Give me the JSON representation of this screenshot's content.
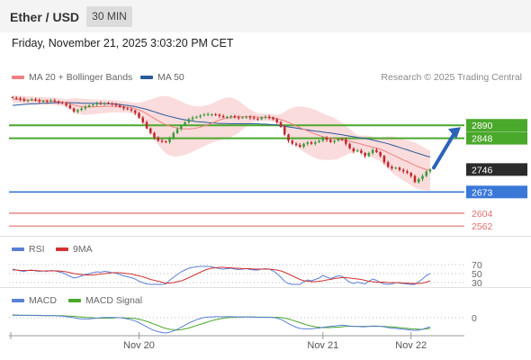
{
  "header": {
    "title": "Ether / USD",
    "interval": "30 MIN"
  },
  "datetime": "Friday, November 21, 2025 3:03:20 PM CET",
  "legend": {
    "ma20": "MA 20 + Bollinger Bands",
    "ma50": "MA 50",
    "copyright": "Research © 2025 Trading Central",
    "rsi": "RSI",
    "rsi_ma": "9MA",
    "macd": "MACD",
    "macd_signal": "MACD Signal"
  },
  "colors": {
    "candle_up": "#3d9a3d",
    "candle_down": "#c0282d",
    "ma20": "#f08080",
    "ma50": "#2a5a9a",
    "band_fill": "#f9d6d6",
    "resistance": "#4aa82b",
    "current": "#2b2b2b",
    "pivot": "#3a78d8",
    "support": "#e07070",
    "arrow": "#2a63b8",
    "rsi": "#5b7fd6",
    "rsi_ma": "#d23232",
    "macd": "#5b7fd6",
    "macd_signal": "#4aa82b"
  },
  "chart_data": {
    "type": "candlestick",
    "price_axis_labels": [
      {
        "value": 2890,
        "label": "2890",
        "kind": "resistance"
      },
      {
        "value": 2848,
        "label": "2848",
        "kind": "resistance"
      },
      {
        "value": 2746,
        "label": "2746",
        "kind": "last"
      },
      {
        "value": 2673,
        "label": "2673",
        "kind": "pivot"
      },
      {
        "value": 2604,
        "label": "2604",
        "kind": "support"
      },
      {
        "value": 2562,
        "label": "2562",
        "kind": "support"
      }
    ],
    "close": [
      2980,
      2978,
      2975,
      2970,
      2972,
      2975,
      2972,
      2968,
      2970,
      2968,
      2971,
      2968,
      2965,
      2962,
      2955,
      2945,
      2935,
      2940,
      2945,
      2950,
      2955,
      2958,
      2962,
      2960,
      2963,
      2961,
      2958,
      2956,
      2950,
      2945,
      2942,
      2938,
      2930,
      2915,
      2900,
      2880,
      2865,
      2850,
      2840,
      2838,
      2835,
      2850,
      2865,
      2878,
      2890,
      2900,
      2910,
      2915,
      2918,
      2922,
      2925,
      2926,
      2926,
      2924,
      2920,
      2916,
      2918,
      2920,
      2916,
      2914,
      2916,
      2918,
      2915,
      2912,
      2910,
      2915,
      2918,
      2916,
      2910,
      2900,
      2885,
      2860,
      2840,
      2830,
      2826,
      2820,
      2830,
      2835,
      2830,
      2835,
      2840,
      2850,
      2843,
      2836,
      2840,
      2845,
      2844,
      2830,
      2815,
      2805,
      2808,
      2800,
      2790,
      2800,
      2810,
      2803,
      2790,
      2770,
      2755,
      2750,
      2752,
      2745,
      2740,
      2735,
      2725,
      2705,
      2715,
      2725,
      2740,
      2746
    ],
    "ma20": [
      2975,
      2975,
      2974,
      2973,
      2972,
      2972,
      2971,
      2970,
      2970,
      2969,
      2969,
      2968,
      2967,
      2965,
      2963,
      2960,
      2956,
      2953,
      2951,
      2950,
      2950,
      2950,
      2951,
      2951,
      2952,
      2952,
      2952,
      2952,
      2951,
      2950,
      2949,
      2947,
      2944,
      2940,
      2935,
      2928,
      2920,
      2912,
      2905,
      2898,
      2892,
      2888,
      2884,
      2881,
      2879,
      2878,
      2878,
      2879,
      2881,
      2884,
      2888,
      2892,
      2897,
      2902,
      2907,
      2911,
      2914,
      2916,
      2917,
      2918,
      2918,
      2918,
      2918,
      2918,
      2917,
      2916,
      2916,
      2915,
      2914,
      2912,
      2909,
      2905,
      2900,
      2894,
      2888,
      2882,
      2877,
      2872,
      2867,
      2862,
      2857,
      2853,
      2850,
      2848,
      2846,
      2844,
      2843,
      2841,
      2838,
      2835,
      2832,
      2829,
      2825,
      2822,
      2819,
      2816,
      2812,
      2807,
      2801,
      2795,
      2789,
      2783,
      2777,
      2772,
      2766,
      2760,
      2755,
      2750,
      2746,
      2743
    ],
    "ma50": [
      2955,
      2956,
      2957,
      2958,
      2959,
      2960,
      2960,
      2961,
      2962,
      2962,
      2963,
      2963,
      2964,
      2964,
      2964,
      2964,
      2963,
      2963,
      2962,
      2962,
      2962,
      2962,
      2962,
      2961,
      2961,
      2960,
      2960,
      2959,
      2958,
      2956,
      2955,
      2953,
      2951,
      2948,
      2945,
      2942,
      2938,
      2934,
      2930,
      2926,
      2922,
      2919,
      2916,
      2913,
      2910,
      2908,
      2906,
      2904,
      2902,
      2901,
      2900,
      2899,
      2898,
      2897,
      2896,
      2896,
      2896,
      2895,
      2895,
      2895,
      2895,
      2895,
      2895,
      2895,
      2895,
      2894,
      2894,
      2893,
      2892,
      2891,
      2889,
      2887,
      2885,
      2883,
      2881,
      2879,
      2877,
      2875,
      2873,
      2871,
      2870,
      2868,
      2866,
      2865,
      2863,
      2861,
      2859,
      2857,
      2855,
      2853,
      2851,
      2849,
      2847,
      2845,
      2842,
      2839,
      2836,
      2833,
      2830,
      2826,
      2822,
      2818,
      2814,
      2810,
      2806,
      2802,
      2798,
      2794,
      2790,
      2787
    ],
    "rsi": [
      60,
      58,
      56,
      55,
      57,
      58,
      56,
      55,
      56,
      55,
      57,
      56,
      54,
      52,
      48,
      44,
      40,
      42,
      45,
      48,
      50,
      52,
      54,
      53,
      55,
      54,
      52,
      51,
      48,
      45,
      43,
      41,
      38,
      33,
      30,
      27,
      26,
      25,
      25,
      26,
      27,
      35,
      42,
      48,
      54,
      58,
      62,
      64,
      65,
      66,
      66,
      66,
      65,
      63,
      61,
      60,
      61,
      62,
      60,
      59,
      60,
      61,
      59,
      58,
      58,
      60,
      61,
      60,
      56,
      50,
      42,
      33,
      28,
      26,
      26,
      25,
      32,
      36,
      34,
      37,
      40,
      46,
      42,
      39,
      42,
      45,
      44,
      37,
      31,
      28,
      31,
      29,
      27,
      33,
      38,
      35,
      30,
      27,
      26,
      27,
      30,
      29,
      28,
      27,
      25,
      24,
      32,
      38,
      46,
      50
    ],
    "rsi_ma": [
      58,
      58,
      57,
      57,
      57,
      57,
      57,
      56,
      56,
      56,
      56,
      56,
      56,
      55,
      54,
      52,
      50,
      49,
      48,
      47,
      47,
      47,
      48,
      49,
      50,
      51,
      52,
      52,
      52,
      51,
      50,
      49,
      47,
      45,
      43,
      40,
      37,
      35,
      33,
      31,
      29,
      29,
      30,
      32,
      34,
      37,
      41,
      45,
      49,
      53,
      57,
      60,
      62,
      63,
      64,
      64,
      63,
      63,
      62,
      62,
      61,
      61,
      61,
      60,
      60,
      60,
      60,
      60,
      59,
      58,
      56,
      53,
      49,
      45,
      41,
      37,
      34,
      33,
      32,
      32,
      33,
      34,
      36,
      37,
      39,
      40,
      41,
      41,
      40,
      39,
      38,
      37,
      35,
      33,
      32,
      31,
      31,
      31,
      30,
      30,
      30,
      30,
      29,
      29,
      28,
      28,
      28,
      29,
      31,
      34
    ],
    "macd": [
      15,
      14,
      13,
      12,
      12,
      12,
      11,
      11,
      10,
      10,
      10,
      10,
      9,
      8,
      6,
      3,
      0,
      -2,
      -3,
      -3,
      -3,
      -2,
      -1,
      0,
      1,
      1,
      1,
      1,
      0,
      -1,
      -3,
      -5,
      -8,
      -12,
      -17,
      -22,
      -27,
      -31,
      -34,
      -36,
      -37,
      -35,
      -32,
      -28,
      -23,
      -18,
      -13,
      -9,
      -5,
      -2,
      1,
      3,
      4,
      5,
      5,
      5,
      5,
      5,
      4,
      4,
      4,
      4,
      3,
      3,
      2,
      2,
      2,
      2,
      1,
      -1,
      -4,
      -9,
      -14,
      -19,
      -23,
      -26,
      -27,
      -27,
      -27,
      -26,
      -25,
      -23,
      -22,
      -21,
      -20,
      -19,
      -18,
      -19,
      -20,
      -21,
      -21,
      -22,
      -22,
      -21,
      -20,
      -20,
      -21,
      -22,
      -24,
      -25,
      -26,
      -27,
      -28,
      -29,
      -30,
      -31,
      -30,
      -28,
      -25,
      -22
    ],
    "macd_signal": [
      12,
      12,
      12,
      12,
      12,
      12,
      12,
      12,
      11,
      11,
      11,
      11,
      10,
      10,
      9,
      8,
      7,
      5,
      4,
      2,
      1,
      0,
      -1,
      -1,
      -1,
      -1,
      -1,
      0,
      0,
      0,
      -1,
      -1,
      -2,
      -4,
      -6,
      -9,
      -12,
      -16,
      -19,
      -23,
      -26,
      -28,
      -29,
      -30,
      -29,
      -27,
      -25,
      -22,
      -19,
      -16,
      -13,
      -10,
      -7,
      -5,
      -3,
      -1,
      0,
      1,
      2,
      3,
      3,
      4,
      4,
      4,
      3,
      3,
      3,
      3,
      2,
      2,
      1,
      -1,
      -3,
      -6,
      -9,
      -12,
      -15,
      -18,
      -20,
      -22,
      -23,
      -24,
      -24,
      -24,
      -23,
      -23,
      -22,
      -21,
      -21,
      -21,
      -21,
      -21,
      -21,
      -21,
      -21,
      -21,
      -21,
      -21,
      -22,
      -22,
      -23,
      -24,
      -25,
      -26,
      -27,
      -27,
      -28,
      -28,
      -27,
      -26
    ],
    "rsi_levels": [
      "70",
      "50",
      "30"
    ],
    "macd_zero_label": "0",
    "x_ticks": [
      {
        "index": 33,
        "label": "Nov 20"
      },
      {
        "index": 81,
        "label": "Nov 21"
      },
      {
        "index": 104,
        "label": "Nov 22"
      }
    ]
  }
}
